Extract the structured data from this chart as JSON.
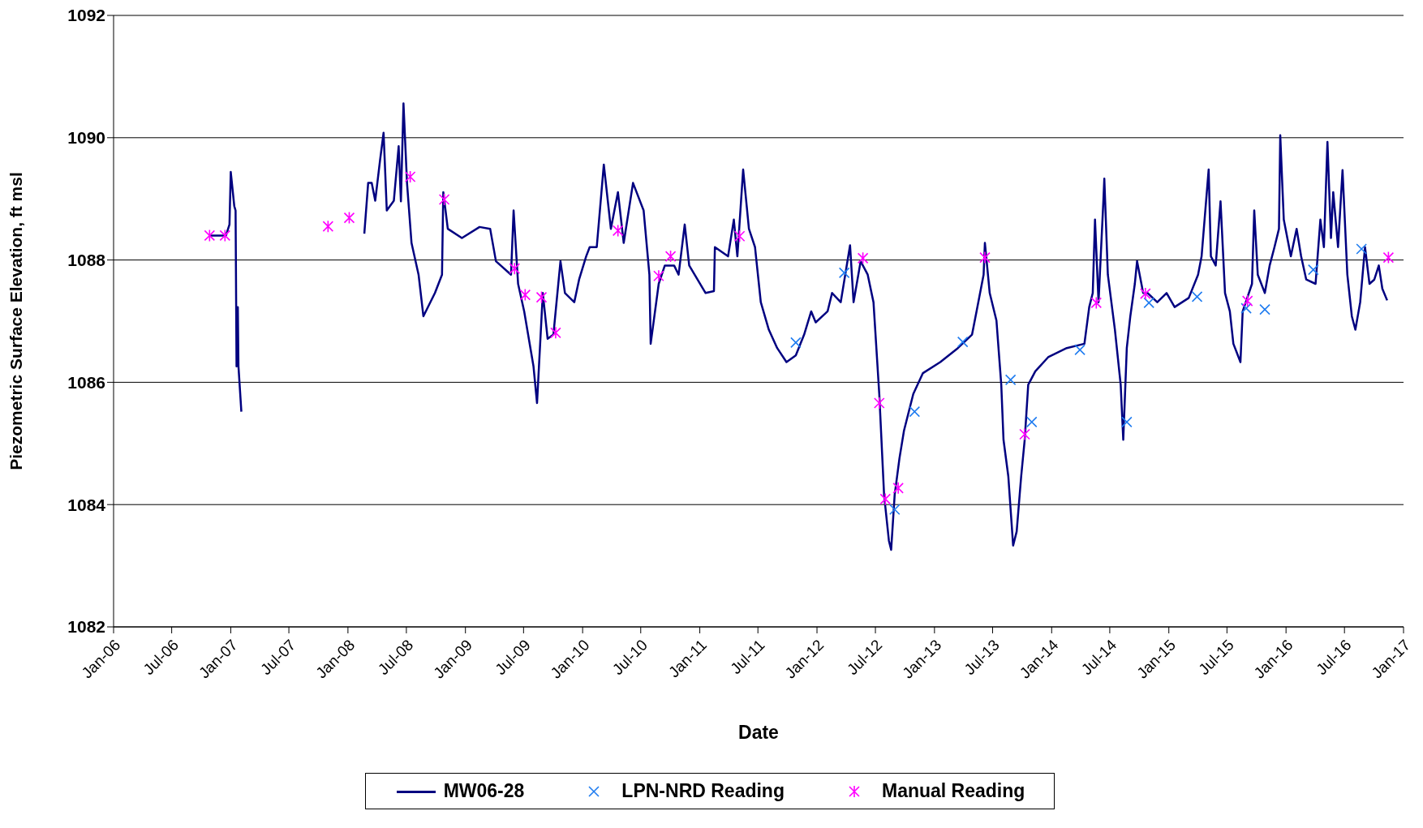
{
  "chart_data": {
    "type": "line",
    "xlabel": "Date",
    "ylabel": "Piezometric Surface Elevation, ft msl",
    "xlim": [
      "2006-01-01",
      "2017-01-01"
    ],
    "xticks": [
      {
        "value": "2006-01-01",
        "label": "Jan-06"
      },
      {
        "value": "2006-07-01",
        "label": "Jul-06"
      },
      {
        "value": "2007-01-01",
        "label": "Jan-07"
      },
      {
        "value": "2007-07-01",
        "label": "Jul-07"
      },
      {
        "value": "2008-01-01",
        "label": "Jan-08"
      },
      {
        "value": "2008-07-01",
        "label": "Jul-08"
      },
      {
        "value": "2009-01-01",
        "label": "Jan-09"
      },
      {
        "value": "2009-07-01",
        "label": "Jul-09"
      },
      {
        "value": "2010-01-01",
        "label": "Jan-10"
      },
      {
        "value": "2010-07-01",
        "label": "Jul-10"
      },
      {
        "value": "2011-01-01",
        "label": "Jan-11"
      },
      {
        "value": "2011-07-01",
        "label": "Jul-11"
      },
      {
        "value": "2012-01-01",
        "label": "Jan-12"
      },
      {
        "value": "2012-07-01",
        "label": "Jul-12"
      },
      {
        "value": "2013-01-01",
        "label": "Jan-13"
      },
      {
        "value": "2013-07-01",
        "label": "Jul-13"
      },
      {
        "value": "2014-01-01",
        "label": "Jan-14"
      },
      {
        "value": "2014-07-01",
        "label": "Jul-14"
      },
      {
        "value": "2015-01-01",
        "label": "Jan-15"
      },
      {
        "value": "2015-07-01",
        "label": "Jul-15"
      },
      {
        "value": "2016-01-01",
        "label": "Jan-16"
      },
      {
        "value": "2016-07-01",
        "label": "Jul-16"
      },
      {
        "value": "2017-01-01",
        "label": "Jan-17"
      }
    ],
    "ylim": [
      1082,
      1092
    ],
    "yticks": [
      1082,
      1084,
      1086,
      1088,
      1090,
      1092
    ],
    "grid": "y",
    "legend": "bottom",
    "series": [
      {
        "name": "MW06-28",
        "color": "#000080",
        "marker": "none",
        "line_style": "solid",
        "x": [
          "2006-10-27",
          "2006-12-17",
          "2006-12-28",
          "2007-01-01",
          "2007-01-12",
          "2007-01-16",
          "2007-01-19",
          "2007-01-23",
          "2007-01-25",
          "2007-02-03",
          "2007-07-02",
          "2008-02-21",
          "2008-03-04",
          "2008-03-15",
          "2008-03-26",
          "2008-04-10",
          "2008-04-21",
          "2008-05-01",
          "2008-05-23",
          "2008-06-07",
          "2008-06-14",
          "2008-06-22",
          "2008-07-03",
          "2008-07-17",
          "2008-08-08",
          "2008-08-23",
          "2008-09-28",
          "2008-10-20",
          "2008-10-24",
          "2008-11-07",
          "2008-12-21",
          "2009-02-14",
          "2009-03-19",
          "2009-04-06",
          "2009-05-23",
          "2009-05-31",
          "2009-06-14",
          "2009-07-03",
          "2009-08-01",
          "2009-08-12",
          "2009-08-30",
          "2009-09-14",
          "2009-10-02",
          "2009-10-24",
          "2009-11-07",
          "2009-12-06",
          "2009-12-21",
          "2010-01-12",
          "2010-01-23",
          "2010-02-14",
          "2010-03-08",
          "2010-03-30",
          "2010-04-21",
          "2010-05-09",
          "2010-06-07",
          "2010-07-10",
          "2010-07-28",
          "2010-08-01",
          "2010-08-26",
          "2010-09-14",
          "2010-10-13",
          "2010-10-27",
          "2010-11-15",
          "2010-11-29",
          "2011-01-19",
          "2011-02-14",
          "2011-02-17",
          "2011-03-30",
          "2011-04-17",
          "2011-04-28",
          "2011-05-16",
          "2011-06-03",
          "2011-06-22",
          "2011-07-10",
          "2011-08-04",
          "2011-08-30",
          "2011-09-28",
          "2011-10-27",
          "2011-11-22",
          "2011-12-14",
          "2011-12-28",
          "2012-02-03",
          "2012-02-17",
          "2012-03-15",
          "2012-04-13",
          "2012-04-24",
          "2012-05-16",
          "2012-06-07",
          "2012-06-25",
          "2012-07-13",
          "2012-07-28",
          "2012-08-12",
          "2012-08-19",
          "2012-08-30",
          "2012-09-14",
          "2012-09-28",
          "2012-10-27",
          "2012-11-26",
          "2013-01-19",
          "2013-03-15",
          "2013-04-28",
          "2013-05-12",
          "2013-06-03",
          "2013-06-07",
          "2013-06-22",
          "2013-07-13",
          "2013-07-28",
          "2013-08-04",
          "2013-08-19",
          "2013-09-03",
          "2013-09-14",
          "2013-09-28",
          "2013-10-09",
          "2013-10-20",
          "2013-11-11",
          "2013-12-21",
          "2014-02-17",
          "2014-04-13",
          "2014-04-28",
          "2014-05-09",
          "2014-05-16",
          "2014-05-27",
          "2014-06-11",
          "2014-06-14",
          "2014-06-25",
          "2014-07-17",
          "2014-08-04",
          "2014-08-12",
          "2014-08-23",
          "2014-09-03",
          "2014-09-17",
          "2014-09-24",
          "2014-10-13",
          "2014-10-27",
          "2014-11-26",
          "2014-12-25",
          "2015-01-19",
          "2015-03-04",
          "2015-04-02",
          "2015-04-13",
          "2015-05-05",
          "2015-05-12",
          "2015-05-27",
          "2015-06-11",
          "2015-06-25",
          "2015-07-10",
          "2015-07-21",
          "2015-08-12",
          "2015-08-19",
          "2015-09-17",
          "2015-09-24",
          "2015-10-05",
          "2015-10-27",
          "2015-11-11",
          "2015-11-26",
          "2015-12-10",
          "2015-12-14",
          "2015-12-25",
          "2016-01-16",
          "2016-02-03",
          "2016-02-17",
          "2016-03-04",
          "2016-04-02",
          "2016-04-17",
          "2016-04-28",
          "2016-05-09",
          "2016-05-20",
          "2016-05-27",
          "2016-06-11",
          "2016-06-25",
          "2016-07-10",
          "2016-07-24",
          "2016-08-04",
          "2016-08-19",
          "2016-09-03",
          "2016-09-17",
          "2016-10-02",
          "2016-10-16",
          "2016-10-27",
          "2016-11-11"
        ],
        "values": [
          1088.4,
          1088.4,
          1088.58,
          1089.44,
          1088.88,
          1088.81,
          1086.26,
          1087.23,
          1086.26,
          1085.52,
          null,
          1088.43,
          1089.26,
          1089.26,
          1088.97,
          1089.63,
          1090.08,
          1088.81,
          1088.97,
          1089.86,
          1088.96,
          1090.56,
          1089.26,
          1088.28,
          1087.76,
          1087.08,
          1087.46,
          1087.76,
          1089.11,
          1088.51,
          1088.36,
          1088.54,
          1088.51,
          1087.98,
          1087.76,
          1088.81,
          1087.61,
          1087.16,
          1086.26,
          1085.66,
          1087.46,
          1086.71,
          1086.78,
          1087.98,
          1087.46,
          1087.31,
          1087.68,
          1088.06,
          1088.21,
          1088.21,
          1089.56,
          1088.51,
          1089.11,
          1088.28,
          1089.26,
          1088.81,
          1087.76,
          1086.63,
          1087.61,
          1087.91,
          1087.91,
          1087.76,
          1088.58,
          1087.91,
          1087.46,
          1087.49,
          1088.21,
          1088.06,
          1088.66,
          1088.06,
          1089.48,
          1088.51,
          1088.21,
          1087.31,
          1086.86,
          1086.56,
          1086.33,
          1086.44,
          1086.78,
          1087.16,
          1086.98,
          1087.16,
          1087.46,
          1087.31,
          1088.24,
          1087.31,
          1087.98,
          1087.76,
          1087.31,
          1085.81,
          1084.16,
          1083.41,
          1083.26,
          1084.16,
          1084.76,
          1085.21,
          1085.81,
          1086.15,
          1086.33,
          1086.56,
          1086.78,
          1087.16,
          1087.76,
          1088.28,
          1087.46,
          1087.01,
          1085.96,
          1085.06,
          1084.46,
          1083.33,
          1083.56,
          1084.46,
          1085.06,
          1085.96,
          1086.18,
          1086.41,
          1086.56,
          1086.63,
          1087.23,
          1087.46,
          1088.66,
          1087.31,
          1088.96,
          1089.33,
          1087.76,
          1086.86,
          1085.96,
          1085.06,
          1086.56,
          1087.08,
          1087.61,
          1087.98,
          1087.46,
          1087.46,
          1087.31,
          1087.46,
          1087.23,
          1087.38,
          1087.76,
          1088.06,
          1089.48,
          1088.06,
          1087.91,
          1088.96,
          1087.46,
          1087.16,
          1086.63,
          1086.33,
          1087.16,
          1087.61,
          1088.81,
          1087.76,
          1087.46,
          1087.91,
          1088.21,
          1088.51,
          1090.04,
          1088.66,
          1088.06,
          1088.51,
          1088.06,
          1087.68,
          1087.61,
          1088.66,
          1088.21,
          1089.93,
          1088.36,
          1089.11,
          1088.21,
          1089.47,
          1087.76,
          1087.08,
          1086.86,
          1087.31,
          1088.21,
          1087.61,
          1087.68,
          1087.91,
          1087.53,
          1087.34
        ]
      },
      {
        "name": "LPN-NRD Reading",
        "type": "scatter",
        "color": "#1f7cf0",
        "marker": "cross",
        "x": [
          "2011-10-27",
          "2012-03-26",
          "2012-08-30",
          "2012-10-31",
          "2013-03-30",
          "2013-08-26",
          "2013-10-31",
          "2014-03-30",
          "2014-08-23",
          "2014-10-31",
          "2015-03-30",
          "2015-08-30",
          "2015-10-27",
          "2016-03-26",
          "2016-08-23"
        ],
        "values": [
          1086.65,
          1087.79,
          1083.92,
          1085.52,
          1086.66,
          1086.04,
          1085.35,
          1086.53,
          1085.35,
          1087.3,
          1087.4,
          1087.21,
          1087.19,
          1087.84,
          1088.18
        ]
      },
      {
        "name": "Manual Reading",
        "type": "scatter",
        "color": "#ff00ff",
        "x": [
          "2006-10-27",
          "2006-12-14",
          "2007-10-31",
          "2008-01-05",
          "2008-07-13",
          "2008-10-27",
          "2009-06-03",
          "2009-07-06",
          "2009-08-26",
          "2009-10-09",
          "2010-04-21",
          "2010-08-26",
          "2010-10-02",
          "2011-05-05",
          "2012-05-23",
          "2012-07-13",
          "2012-08-01",
          "2012-09-10",
          "2013-06-07",
          "2013-10-09",
          "2014-05-20",
          "2014-10-20",
          "2015-09-03",
          "2016-11-15"
        ],
        "values": [
          1088.4,
          1088.4,
          1088.55,
          1088.69,
          1089.36,
          1088.99,
          1087.86,
          1087.43,
          1087.39,
          1086.81,
          1088.48,
          1087.74,
          1088.06,
          1088.39,
          1088.03,
          1085.66,
          1084.09,
          1084.27,
          1088.04,
          1085.15,
          1087.3,
          1087.45,
          1087.33,
          1088.04
        ]
      }
    ]
  }
}
